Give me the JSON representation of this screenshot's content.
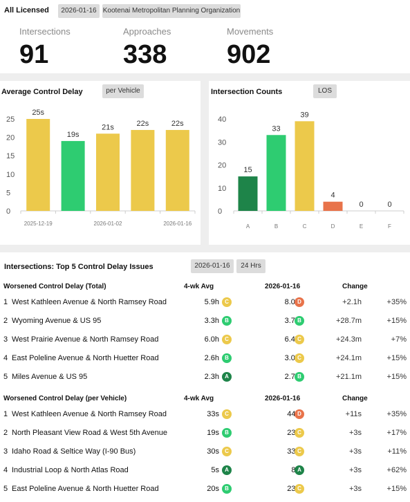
{
  "header": {
    "title": "All Licensed",
    "date_chip": "2026-01-16",
    "org_chip": "Kootenai Metropolitan Planning Organization"
  },
  "kpis": [
    {
      "label": "Intersections",
      "value": "91"
    },
    {
      "label": "Approaches",
      "value": "338"
    },
    {
      "label": "Movements",
      "value": "902"
    }
  ],
  "delay_chart": {
    "title": "Average Control Delay",
    "chip": "per Vehicle"
  },
  "counts_chart": {
    "title": "Intersection Counts",
    "chip": "LOS"
  },
  "chart_data": [
    {
      "type": "bar",
      "title": "Average Control Delay",
      "categories": [
        "2025-12-19",
        "",
        "2026-01-02",
        "",
        "2026-01-16"
      ],
      "tick_labels": [
        "2025-12-19",
        "2026-01-02",
        "2026-01-16"
      ],
      "values": [
        25,
        19,
        21,
        22,
        22
      ],
      "data_labels": [
        "25s",
        "19s",
        "21s",
        "22s",
        "22s"
      ],
      "colors": [
        "#ecc94b",
        "#2ecc71",
        "#ecc94b",
        "#ecc94b",
        "#ecc94b"
      ],
      "ylim": [
        0,
        25
      ],
      "yticks": [
        0,
        5,
        10,
        15,
        20,
        25
      ]
    },
    {
      "type": "bar",
      "title": "Intersection Counts",
      "categories": [
        "A",
        "B",
        "C",
        "D",
        "E",
        "F"
      ],
      "values": [
        15,
        33,
        39,
        4,
        0,
        0
      ],
      "colors": [
        "#1e8449",
        "#2ecc71",
        "#ecc94b",
        "#e8734a",
        "#999999",
        "#999999"
      ],
      "ylim": [
        0,
        40
      ],
      "yticks": [
        0,
        10,
        20,
        30,
        40
      ]
    }
  ],
  "colors": {
    "A": "#1e8449",
    "B": "#2ecc71",
    "C": "#ecc94b",
    "D": "#e8734a"
  },
  "issues": {
    "title": "Intersections: Top 5 Control Delay Issues",
    "date_chip": "2026-01-16",
    "period_chip": "24 Hrs",
    "sections": [
      {
        "header": {
          "name": "Worsened Control Delay (Total)",
          "avg": "4-wk Avg",
          "date": "2026-01-16",
          "change": "Change"
        },
        "rows": [
          {
            "rank": "1",
            "name": "West Kathleen Avenue & North Ramsey Road",
            "avg": "5.9h",
            "avg_los": "C",
            "cur": "8.0h",
            "cur_los": "D",
            "chg": "+2.1h",
            "pct": "+35%"
          },
          {
            "rank": "2",
            "name": "Wyoming Avenue & US 95",
            "avg": "3.3h",
            "avg_los": "B",
            "cur": "3.7h",
            "cur_los": "B",
            "chg": "+28.7m",
            "pct": "+15%"
          },
          {
            "rank": "3",
            "name": "West Prairie Avenue & North Ramsey Road",
            "avg": "6.0h",
            "avg_los": "C",
            "cur": "6.4h",
            "cur_los": "C",
            "chg": "+24.3m",
            "pct": "+7%"
          },
          {
            "rank": "4",
            "name": "East Poleline Avenue & North Huetter Road",
            "avg": "2.6h",
            "avg_los": "B",
            "cur": "3.0h",
            "cur_los": "C",
            "chg": "+24.1m",
            "pct": "+15%"
          },
          {
            "rank": "5",
            "name": "Miles Avenue & US 95",
            "avg": "2.3h",
            "avg_los": "A",
            "cur": "2.7h",
            "cur_los": "B",
            "chg": "+21.1m",
            "pct": "+15%"
          }
        ]
      },
      {
        "header": {
          "name": "Worsened Control Delay (per Vehicle)",
          "avg": "4-wk Avg",
          "date": "2026-01-16",
          "change": "Change"
        },
        "rows": [
          {
            "rank": "1",
            "name": "West Kathleen Avenue & North Ramsey Road",
            "avg": "33s",
            "avg_los": "C",
            "cur": "44s",
            "cur_los": "D",
            "chg": "+11s",
            "pct": "+35%"
          },
          {
            "rank": "2",
            "name": "North Pleasant View Road & West 5th Avenue",
            "avg": "19s",
            "avg_los": "B",
            "cur": "23s",
            "cur_los": "C",
            "chg": "+3s",
            "pct": "+17%"
          },
          {
            "rank": "3",
            "name": "Idaho Road & Seltice Way (I-90 Bus)",
            "avg": "30s",
            "avg_los": "C",
            "cur": "33s",
            "cur_los": "C",
            "chg": "+3s",
            "pct": "+11%"
          },
          {
            "rank": "4",
            "name": "Industrial Loop & North Atlas Road",
            "avg": "5s",
            "avg_los": "A",
            "cur": "8s",
            "cur_los": "A",
            "chg": "+3s",
            "pct": "+62%"
          },
          {
            "rank": "5",
            "name": "East Poleline Avenue & North Huetter Road",
            "avg": "20s",
            "avg_los": "B",
            "cur": "23s",
            "cur_los": "C",
            "chg": "+3s",
            "pct": "+15%"
          }
        ]
      }
    ]
  }
}
